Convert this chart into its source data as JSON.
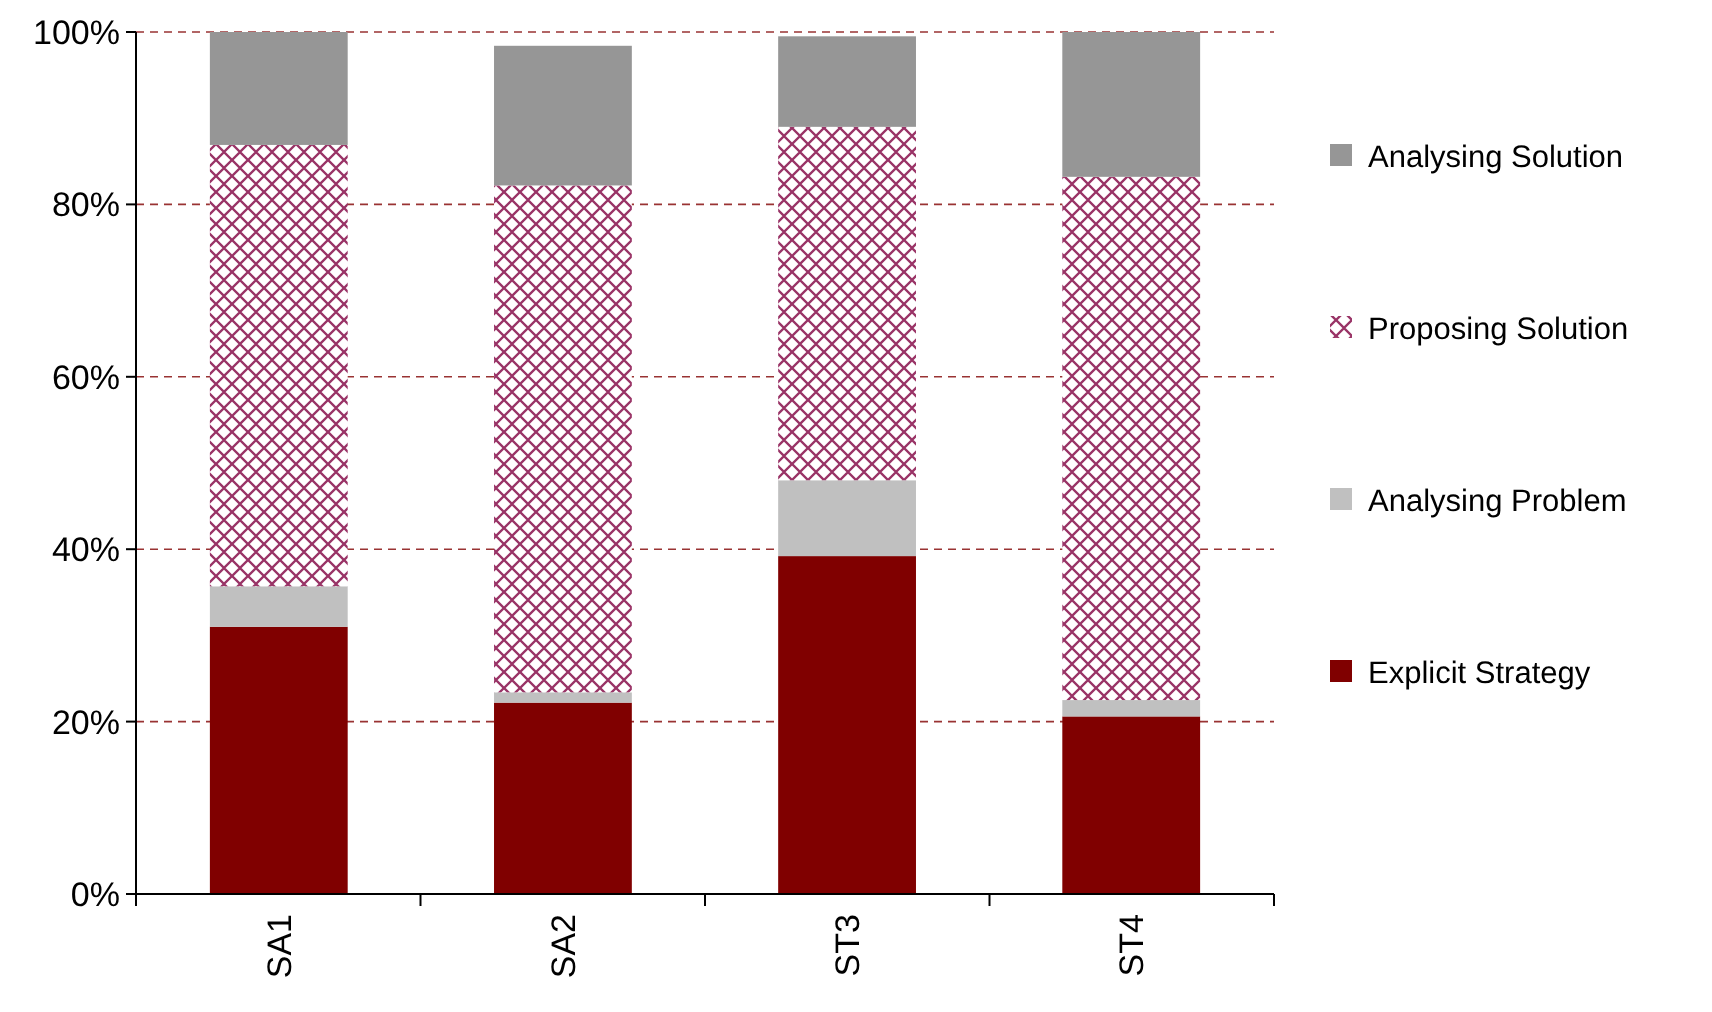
{
  "chart_data": {
    "type": "bar",
    "stacked": true,
    "categories": [
      "SA1",
      "SA2",
      "ST3",
      "ST4"
    ],
    "series": [
      {
        "name": "Explicit Strategy",
        "color": "#800000",
        "values": [
          31.0,
          22.2,
          39.2,
          20.6
        ]
      },
      {
        "name": "Analysing Problem",
        "color": "#c0c0c0",
        "values": [
          4.7,
          1.2,
          8.8,
          1.9
        ]
      },
      {
        "name": "Proposing Solution",
        "color": "#993366",
        "values": [
          51.2,
          58.8,
          41.0,
          60.7
        ]
      },
      {
        "name": "Analysing Solution",
        "color": "#969696",
        "values": [
          13.1,
          16.2,
          10.5,
          16.8
        ]
      }
    ],
    "ylim": [
      0,
      100
    ],
    "yticks": [
      {
        "value": 0,
        "label": "0%"
      },
      {
        "value": 20,
        "label": "20%"
      },
      {
        "value": 40,
        "label": "40%"
      },
      {
        "value": 60,
        "label": "60%"
      },
      {
        "value": 80,
        "label": "80%"
      },
      {
        "value": 100,
        "label": "100%"
      }
    ],
    "grid": "y",
    "legend": "right"
  }
}
